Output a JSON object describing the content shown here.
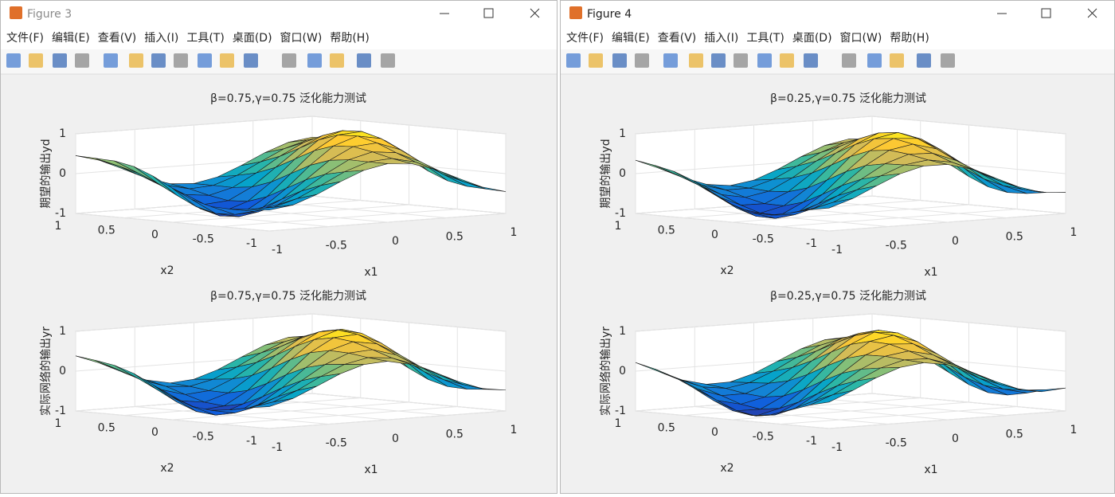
{
  "windows": [
    {
      "title": "Figure 3",
      "menu": [
        "文件(F)",
        "编辑(E)",
        "查看(V)",
        "插入(I)",
        "工具(T)",
        "桌面(D)",
        "窗口(W)",
        "帮助(H)"
      ],
      "axes": [
        {
          "title": "β=0.75,γ=0.75 泛化能力测试",
          "zlabel": "期望的输出yd",
          "xlabel": "x1",
          "ylabel": "x2",
          "xticks": [
            -1,
            -0.5,
            0,
            0.5,
            1
          ],
          "yticks": [
            -1,
            -0.5,
            0,
            0.5,
            1
          ],
          "zticks": [
            -1,
            0,
            1
          ]
        },
        {
          "title": "β=0.75,γ=0.75 泛化能力测试",
          "zlabel": "实际网络的输出yr",
          "xlabel": "x1",
          "ylabel": "x2",
          "xticks": [
            -1,
            -0.5,
            0,
            0.5,
            1
          ],
          "yticks": [
            -1,
            -0.5,
            0,
            0.5,
            1
          ],
          "zticks": [
            -1,
            0,
            1
          ]
        }
      ]
    },
    {
      "title": "Figure 4",
      "menu": [
        "文件(F)",
        "编辑(E)",
        "查看(V)",
        "插入(I)",
        "工具(T)",
        "桌面(D)",
        "窗口(W)",
        "帮助(H)"
      ],
      "axes": [
        {
          "title": "β=0.25,γ=0.75 泛化能力测试",
          "zlabel": "期望的输出yd",
          "xlabel": "x1",
          "ylabel": "x2",
          "xticks": [
            -1,
            -0.5,
            0,
            0.5,
            1
          ],
          "yticks": [
            -1,
            -0.5,
            0,
            0.5,
            1
          ],
          "zticks": [
            -1,
            0,
            1
          ]
        },
        {
          "title": "β=0.25,γ=0.75 泛化能力测试",
          "zlabel": "实际网络的输出yr",
          "xlabel": "x1",
          "ylabel": "x2",
          "xticks": [
            -1,
            -0.5,
            0,
            0.5,
            1
          ],
          "yticks": [
            -1,
            -0.5,
            0,
            0.5,
            1
          ],
          "zticks": [
            -1,
            0,
            1
          ]
        }
      ]
    }
  ]
}
